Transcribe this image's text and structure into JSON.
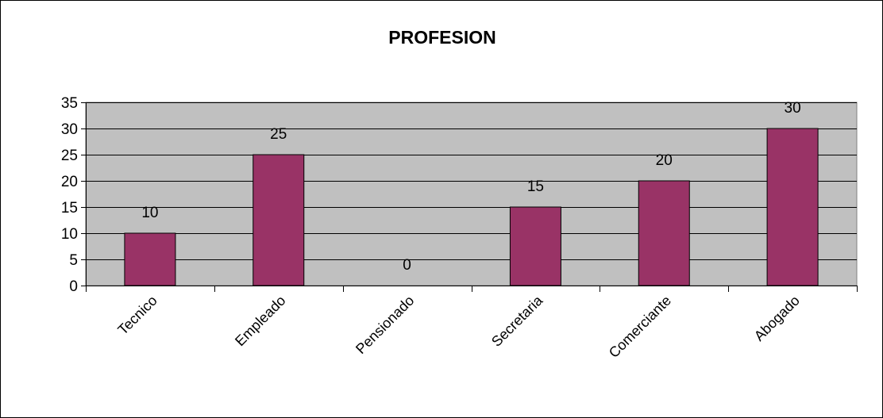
{
  "chart_data": {
    "type": "bar",
    "title": "PROFESION",
    "xlabel": "",
    "ylabel": "",
    "categories": [
      "Tecnico",
      "Empleado",
      "Pensionado",
      "Secretaria",
      "Comerciante",
      "Abogado"
    ],
    "values": [
      10,
      25,
      0,
      15,
      20,
      30
    ],
    "data_labels": [
      "10",
      "25",
      "0",
      "15",
      "20",
      "30"
    ],
    "ylim": [
      0,
      35
    ],
    "yticks": [
      0,
      5,
      10,
      15,
      20,
      25,
      30,
      35
    ],
    "ytick_labels": [
      "0",
      "5",
      "10",
      "15",
      "20",
      "25",
      "30",
      "35"
    ],
    "grid": true,
    "legend": "none",
    "colors": {
      "bar": "#993366",
      "plot_area": "#c0c0c0",
      "gridline": "#000000"
    }
  }
}
